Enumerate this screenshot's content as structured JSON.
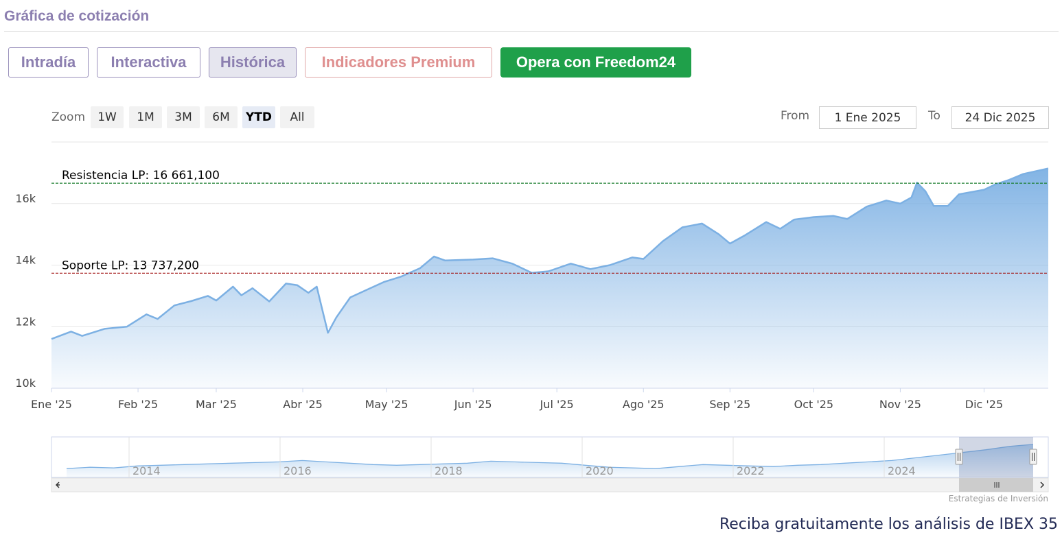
{
  "section_title": "Gráfica de cotización",
  "tabs": [
    {
      "label": "Intradía",
      "state": "normal"
    },
    {
      "label": "Interactiva",
      "state": "normal"
    },
    {
      "label": "Histórica",
      "state": "active"
    },
    {
      "label": "Indicadores Premium",
      "state": "premium"
    },
    {
      "label": "Opera con Freedom24",
      "state": "cta"
    }
  ],
  "zoom": {
    "label": "Zoom",
    "buttons": [
      "1W",
      "1M",
      "3M",
      "6M",
      "YTD",
      "All"
    ],
    "selected": "YTD"
  },
  "range": {
    "from_label": "From",
    "from_value": "1 Ene 2025",
    "to_label": "To",
    "to_value": "24 Dic 2025"
  },
  "colors": {
    "accent": "#8c7fb0",
    "cta": "#1fa04a",
    "premium": "#df8f8f",
    "series_line": "#7cb0e3",
    "resistance_line": "#1a7f2e",
    "support_line": "#a31616"
  },
  "chart_data": {
    "type": "area",
    "xlim": [
      "2025-01-01",
      "2025-12-24"
    ],
    "ylim": [
      10000,
      18000
    ],
    "y_ticks": [
      {
        "value": 10000,
        "label": "10k"
      },
      {
        "value": 12000,
        "label": "12k"
      },
      {
        "value": 14000,
        "label": "14k"
      },
      {
        "value": 16000,
        "label": "16k"
      }
    ],
    "x_ticks": [
      {
        "date": "2025-01-01",
        "label": "Ene '25"
      },
      {
        "date": "2025-02-01",
        "label": "Feb '25"
      },
      {
        "date": "2025-03-01",
        "label": "Mar '25"
      },
      {
        "date": "2025-04-01",
        "label": "Abr '25"
      },
      {
        "date": "2025-05-01",
        "label": "May '25"
      },
      {
        "date": "2025-06-01",
        "label": "Jun '25"
      },
      {
        "date": "2025-07-01",
        "label": "Jul '25"
      },
      {
        "date": "2025-08-01",
        "label": "Ago '25"
      },
      {
        "date": "2025-09-01",
        "label": "Sep '25"
      },
      {
        "date": "2025-10-01",
        "label": "Oct '25"
      },
      {
        "date": "2025-11-01",
        "label": "Nov '25"
      },
      {
        "date": "2025-12-01",
        "label": "Dic '25"
      }
    ],
    "grid": true,
    "plot_lines": [
      {
        "label": "Resistencia LP: 16 661,100",
        "value": 16661,
        "color": "#1a7f2e"
      },
      {
        "label": "Soporte LP: 13 737,200",
        "value": 13737,
        "color": "#a31616"
      }
    ],
    "series": [
      {
        "points": [
          [
            "2025-01-01",
            11600
          ],
          [
            "2025-01-08",
            11840
          ],
          [
            "2025-01-12",
            11700
          ],
          [
            "2025-01-20",
            11930
          ],
          [
            "2025-01-28",
            12000
          ],
          [
            "2025-02-04",
            12400
          ],
          [
            "2025-02-08",
            12250
          ],
          [
            "2025-02-14",
            12690
          ],
          [
            "2025-02-20",
            12830
          ],
          [
            "2025-02-26",
            13000
          ],
          [
            "2025-03-01",
            12850
          ],
          [
            "2025-03-07",
            13300
          ],
          [
            "2025-03-10",
            13020
          ],
          [
            "2025-03-14",
            13250
          ],
          [
            "2025-03-20",
            12820
          ],
          [
            "2025-03-26",
            13400
          ],
          [
            "2025-03-30",
            13350
          ],
          [
            "2025-04-03",
            13100
          ],
          [
            "2025-04-06",
            13300
          ],
          [
            "2025-04-08",
            12550
          ],
          [
            "2025-04-10",
            11800
          ],
          [
            "2025-04-13",
            12300
          ],
          [
            "2025-04-18",
            12950
          ],
          [
            "2025-04-24",
            13200
          ],
          [
            "2025-04-30",
            13450
          ],
          [
            "2025-05-06",
            13620
          ],
          [
            "2025-05-13",
            13900
          ],
          [
            "2025-05-18",
            14280
          ],
          [
            "2025-05-22",
            14150
          ],
          [
            "2025-06-01",
            14180
          ],
          [
            "2025-06-08",
            14220
          ],
          [
            "2025-06-15",
            14050
          ],
          [
            "2025-06-22",
            13750
          ],
          [
            "2025-06-28",
            13800
          ],
          [
            "2025-07-06",
            14050
          ],
          [
            "2025-07-13",
            13870
          ],
          [
            "2025-07-20",
            14000
          ],
          [
            "2025-07-28",
            14250
          ],
          [
            "2025-08-01",
            14200
          ],
          [
            "2025-08-08",
            14780
          ],
          [
            "2025-08-15",
            15230
          ],
          [
            "2025-08-22",
            15350
          ],
          [
            "2025-08-28",
            15000
          ],
          [
            "2025-09-01",
            14700
          ],
          [
            "2025-09-06",
            14950
          ],
          [
            "2025-09-14",
            15400
          ],
          [
            "2025-09-19",
            15180
          ],
          [
            "2025-09-24",
            15480
          ],
          [
            "2025-10-01",
            15560
          ],
          [
            "2025-10-08",
            15600
          ],
          [
            "2025-10-13",
            15500
          ],
          [
            "2025-10-20",
            15900
          ],
          [
            "2025-10-27",
            16100
          ],
          [
            "2025-11-01",
            16000
          ],
          [
            "2025-11-05",
            16200
          ],
          [
            "2025-11-07",
            16680
          ],
          [
            "2025-11-10",
            16400
          ],
          [
            "2025-11-13",
            15920
          ],
          [
            "2025-11-18",
            15920
          ],
          [
            "2025-11-22",
            16300
          ],
          [
            "2025-12-01",
            16450
          ],
          [
            "2025-12-05",
            16620
          ],
          [
            "2025-12-10",
            16770
          ],
          [
            "2025-12-15",
            16960
          ],
          [
            "2025-12-24",
            17140
          ]
        ]
      }
    ],
    "navigator": {
      "x_ticks": [
        "2014",
        "2016",
        "2018",
        "2020",
        "2022",
        "2024"
      ],
      "selected_range": [
        "2025-01-01",
        "2025-12-24"
      ]
    }
  },
  "credits": "Estrategias de Inversión",
  "footer": "Reciba gratuitamente los análisis de IBEX 35"
}
